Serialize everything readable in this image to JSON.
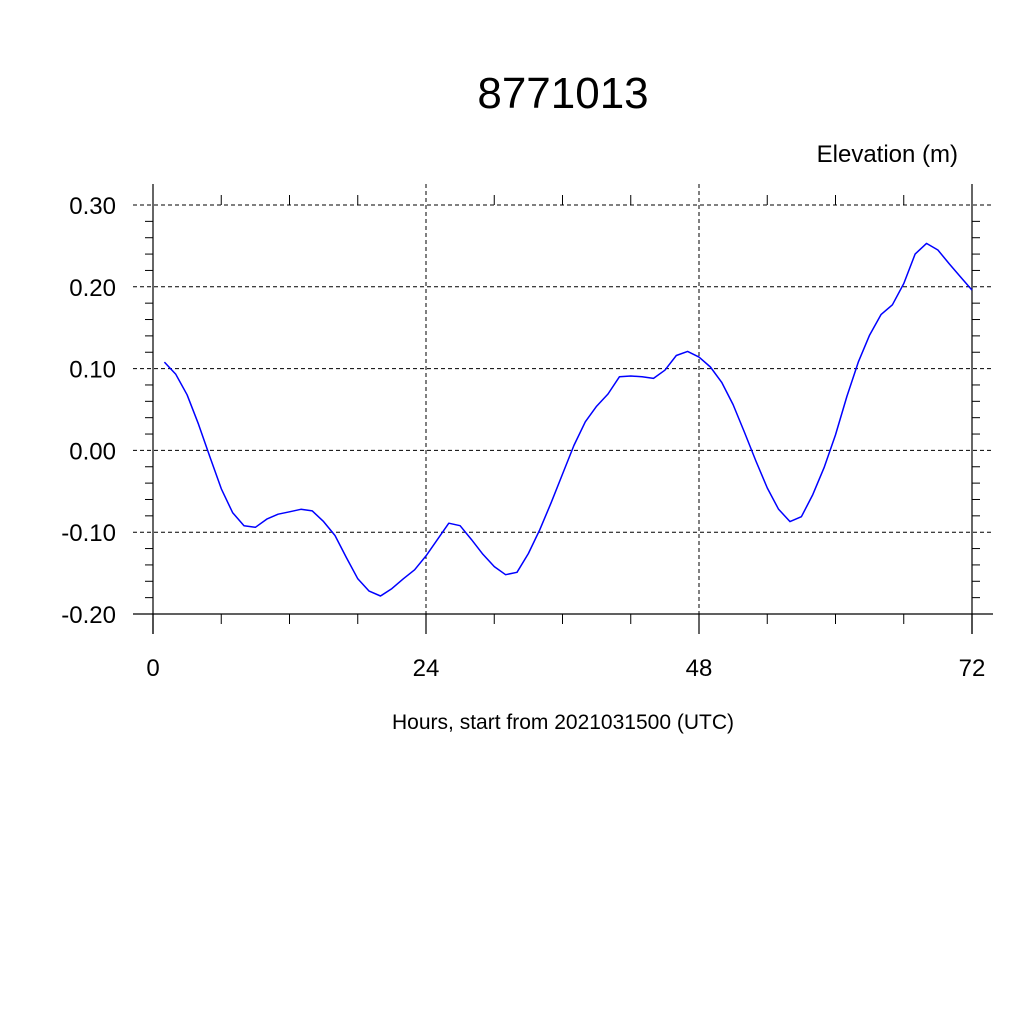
{
  "chart_data": {
    "type": "line",
    "title": "8771013",
    "units_label": "Elevation (m)",
    "xlabel": "Hours, start from 2021031500 (UTC)",
    "ylabel": "",
    "xlim": [
      0,
      72
    ],
    "ylim": [
      -0.2,
      0.3
    ],
    "xticks": [
      0,
      24,
      48,
      72
    ],
    "xtick_labels": [
      "0",
      "24",
      "48",
      "72"
    ],
    "yticks": [
      -0.2,
      -0.1,
      0.0,
      0.1,
      0.2,
      0.3
    ],
    "ytick_labels": [
      "-0.20",
      "-0.10",
      "0.00",
      "0.10",
      "0.20",
      "0.30"
    ],
    "grid": true,
    "line_color": "#0000ff",
    "series": [
      {
        "x": [
          1,
          2,
          3,
          4,
          5,
          6,
          7,
          8,
          9,
          10,
          11,
          12,
          13,
          14,
          15,
          16,
          17,
          18,
          19,
          20,
          21,
          22,
          23,
          24,
          25,
          26,
          27,
          28,
          29,
          30,
          31,
          32,
          33,
          34,
          35,
          36,
          37,
          38,
          39,
          40,
          41,
          42,
          43,
          44,
          45,
          46,
          47,
          48,
          49,
          50,
          51,
          52,
          53,
          54,
          55,
          56,
          57,
          58,
          59,
          60,
          61,
          62,
          63,
          64,
          65,
          66,
          67,
          68,
          69,
          70,
          71,
          72
        ],
        "y": [
          0.108,
          0.093,
          0.068,
          0.032,
          -0.008,
          -0.047,
          -0.076,
          -0.092,
          -0.094,
          -0.084,
          -0.078,
          -0.075,
          -0.072,
          -0.074,
          -0.087,
          -0.104,
          -0.131,
          -0.157,
          -0.172,
          -0.178,
          -0.169,
          -0.157,
          -0.146,
          -0.129,
          -0.109,
          -0.089,
          -0.092,
          -0.109,
          -0.127,
          -0.142,
          -0.152,
          -0.149,
          -0.126,
          -0.097,
          -0.064,
          -0.029,
          0.006,
          0.035,
          0.054,
          0.069,
          0.09,
          0.091,
          0.09,
          0.088,
          0.098,
          0.116,
          0.121,
          0.114,
          0.102,
          0.083,
          0.056,
          0.022,
          -0.013,
          -0.046,
          -0.072,
          -0.087,
          -0.081,
          -0.054,
          -0.021,
          0.019,
          0.066,
          0.108,
          0.141,
          0.166,
          0.178,
          0.204,
          0.24,
          0.253,
          0.245,
          0.228,
          0.212,
          0.196
        ]
      }
    ]
  }
}
